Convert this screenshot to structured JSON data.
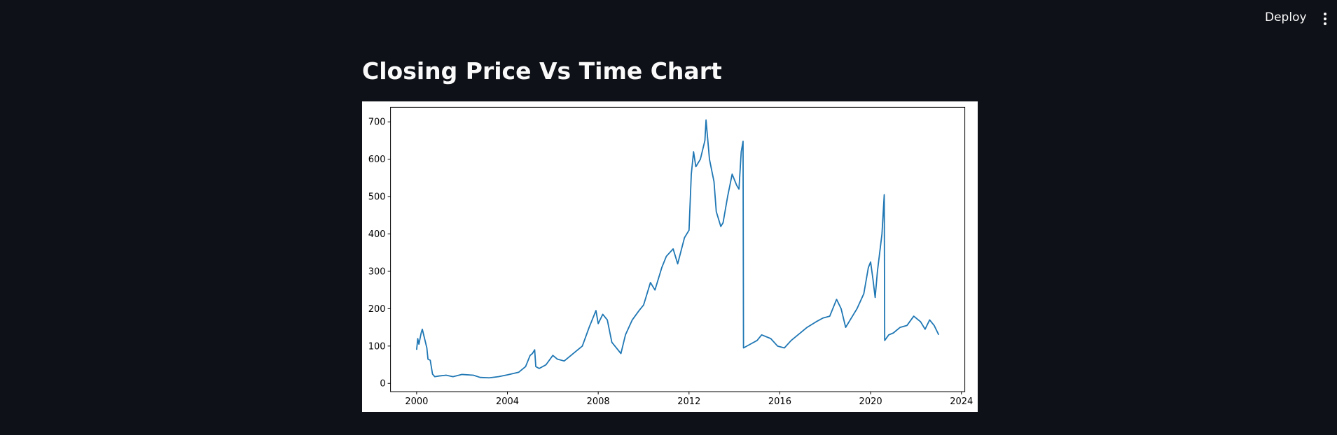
{
  "header": {
    "deploy": "Deploy"
  },
  "page_title": "Closing Price Vs Time Chart",
  "chart_data": {
    "type": "line",
    "x": [
      2000.0,
      2000.05,
      2000.1,
      2000.2,
      2000.25,
      2000.35,
      2000.45,
      2000.5,
      2000.6,
      2000.7,
      2000.8,
      2001.0,
      2001.3,
      2001.6,
      2002.0,
      2002.5,
      2002.8,
      2003.2,
      2003.6,
      2004.0,
      2004.5,
      2004.8,
      2005.0,
      2005.1,
      2005.2,
      2005.25,
      2005.4,
      2005.7,
      2006.0,
      2006.2,
      2006.5,
      2006.8,
      2007.0,
      2007.3,
      2007.6,
      2007.9,
      2008.0,
      2008.2,
      2008.4,
      2008.6,
      2008.8,
      2009.0,
      2009.2,
      2009.5,
      2009.8,
      2010.0,
      2010.3,
      2010.5,
      2010.8,
      2011.0,
      2011.3,
      2011.5,
      2011.8,
      2012.0,
      2012.1,
      2012.2,
      2012.3,
      2012.5,
      2012.7,
      2012.75,
      2012.9,
      2013.1,
      2013.2,
      2013.4,
      2013.5,
      2013.7,
      2013.9,
      2014.1,
      2014.2,
      2014.3,
      2014.38,
      2014.4,
      2014.7,
      2015.0,
      2015.2,
      2015.6,
      2015.9,
      2016.2,
      2016.5,
      2016.8,
      2017.2,
      2017.6,
      2017.9,
      2018.2,
      2018.5,
      2018.7,
      2018.9,
      2019.2,
      2019.4,
      2019.7,
      2019.9,
      2020.0,
      2020.1,
      2020.2,
      2020.3,
      2020.5,
      2020.6,
      2020.62,
      2020.8,
      2021.0,
      2021.3,
      2021.6,
      2021.9,
      2022.2,
      2022.4,
      2022.6,
      2022.8,
      2023.0
    ],
    "series": [
      {
        "color": "#1f77b4",
        "values": [
          90,
          120,
          105,
          135,
          145,
          120,
          95,
          65,
          62,
          25,
          18,
          20,
          22,
          18,
          24,
          22,
          16,
          15,
          18,
          23,
          30,
          45,
          75,
          80,
          90,
          45,
          40,
          50,
          75,
          65,
          60,
          75,
          85,
          100,
          150,
          195,
          160,
          185,
          170,
          110,
          95,
          80,
          130,
          170,
          195,
          210,
          270,
          250,
          310,
          340,
          360,
          320,
          390,
          410,
          560,
          620,
          580,
          600,
          650,
          705,
          600,
          540,
          460,
          420,
          430,
          500,
          560,
          530,
          520,
          620,
          648,
          95,
          105,
          115,
          130,
          120,
          100,
          95,
          115,
          130,
          150,
          165,
          175,
          180,
          225,
          200,
          150,
          180,
          200,
          240,
          310,
          325,
          280,
          230,
          300,
          400,
          505,
          115,
          130,
          135,
          150,
          155,
          180,
          165,
          145,
          170,
          155,
          130
        ]
      }
    ],
    "xlim": [
      1998.85,
      2024.15
    ],
    "xticks": [
      2000,
      2004,
      2008,
      2012,
      2016,
      2020,
      2024
    ],
    "ylim": [
      -22,
      739
    ],
    "yticks": [
      0,
      100,
      200,
      300,
      400,
      500,
      600,
      700
    ]
  }
}
